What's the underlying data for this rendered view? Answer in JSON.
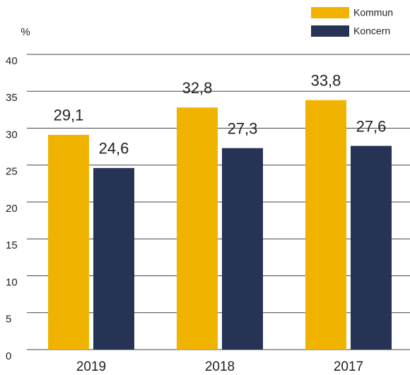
{
  "chart_data": {
    "type": "bar",
    "ylabel": "%",
    "categories": [
      "2019",
      "2018",
      "2017"
    ],
    "series": [
      {
        "name": "Kommun",
        "color": "#f0b400",
        "values": [
          29.1,
          32.8,
          33.8
        ],
        "value_labels": [
          "29,1",
          "32,8",
          "33,8"
        ]
      },
      {
        "name": "Koncern",
        "color": "#263354",
        "values": [
          24.6,
          27.3,
          27.6
        ],
        "value_labels": [
          "24,6",
          "27,3",
          "27,6"
        ]
      }
    ],
    "ylim": [
      0,
      40
    ],
    "yticks": [
      0,
      5,
      10,
      15,
      20,
      25,
      30,
      35,
      40
    ],
    "grid": true,
    "legend": "top-right"
  }
}
